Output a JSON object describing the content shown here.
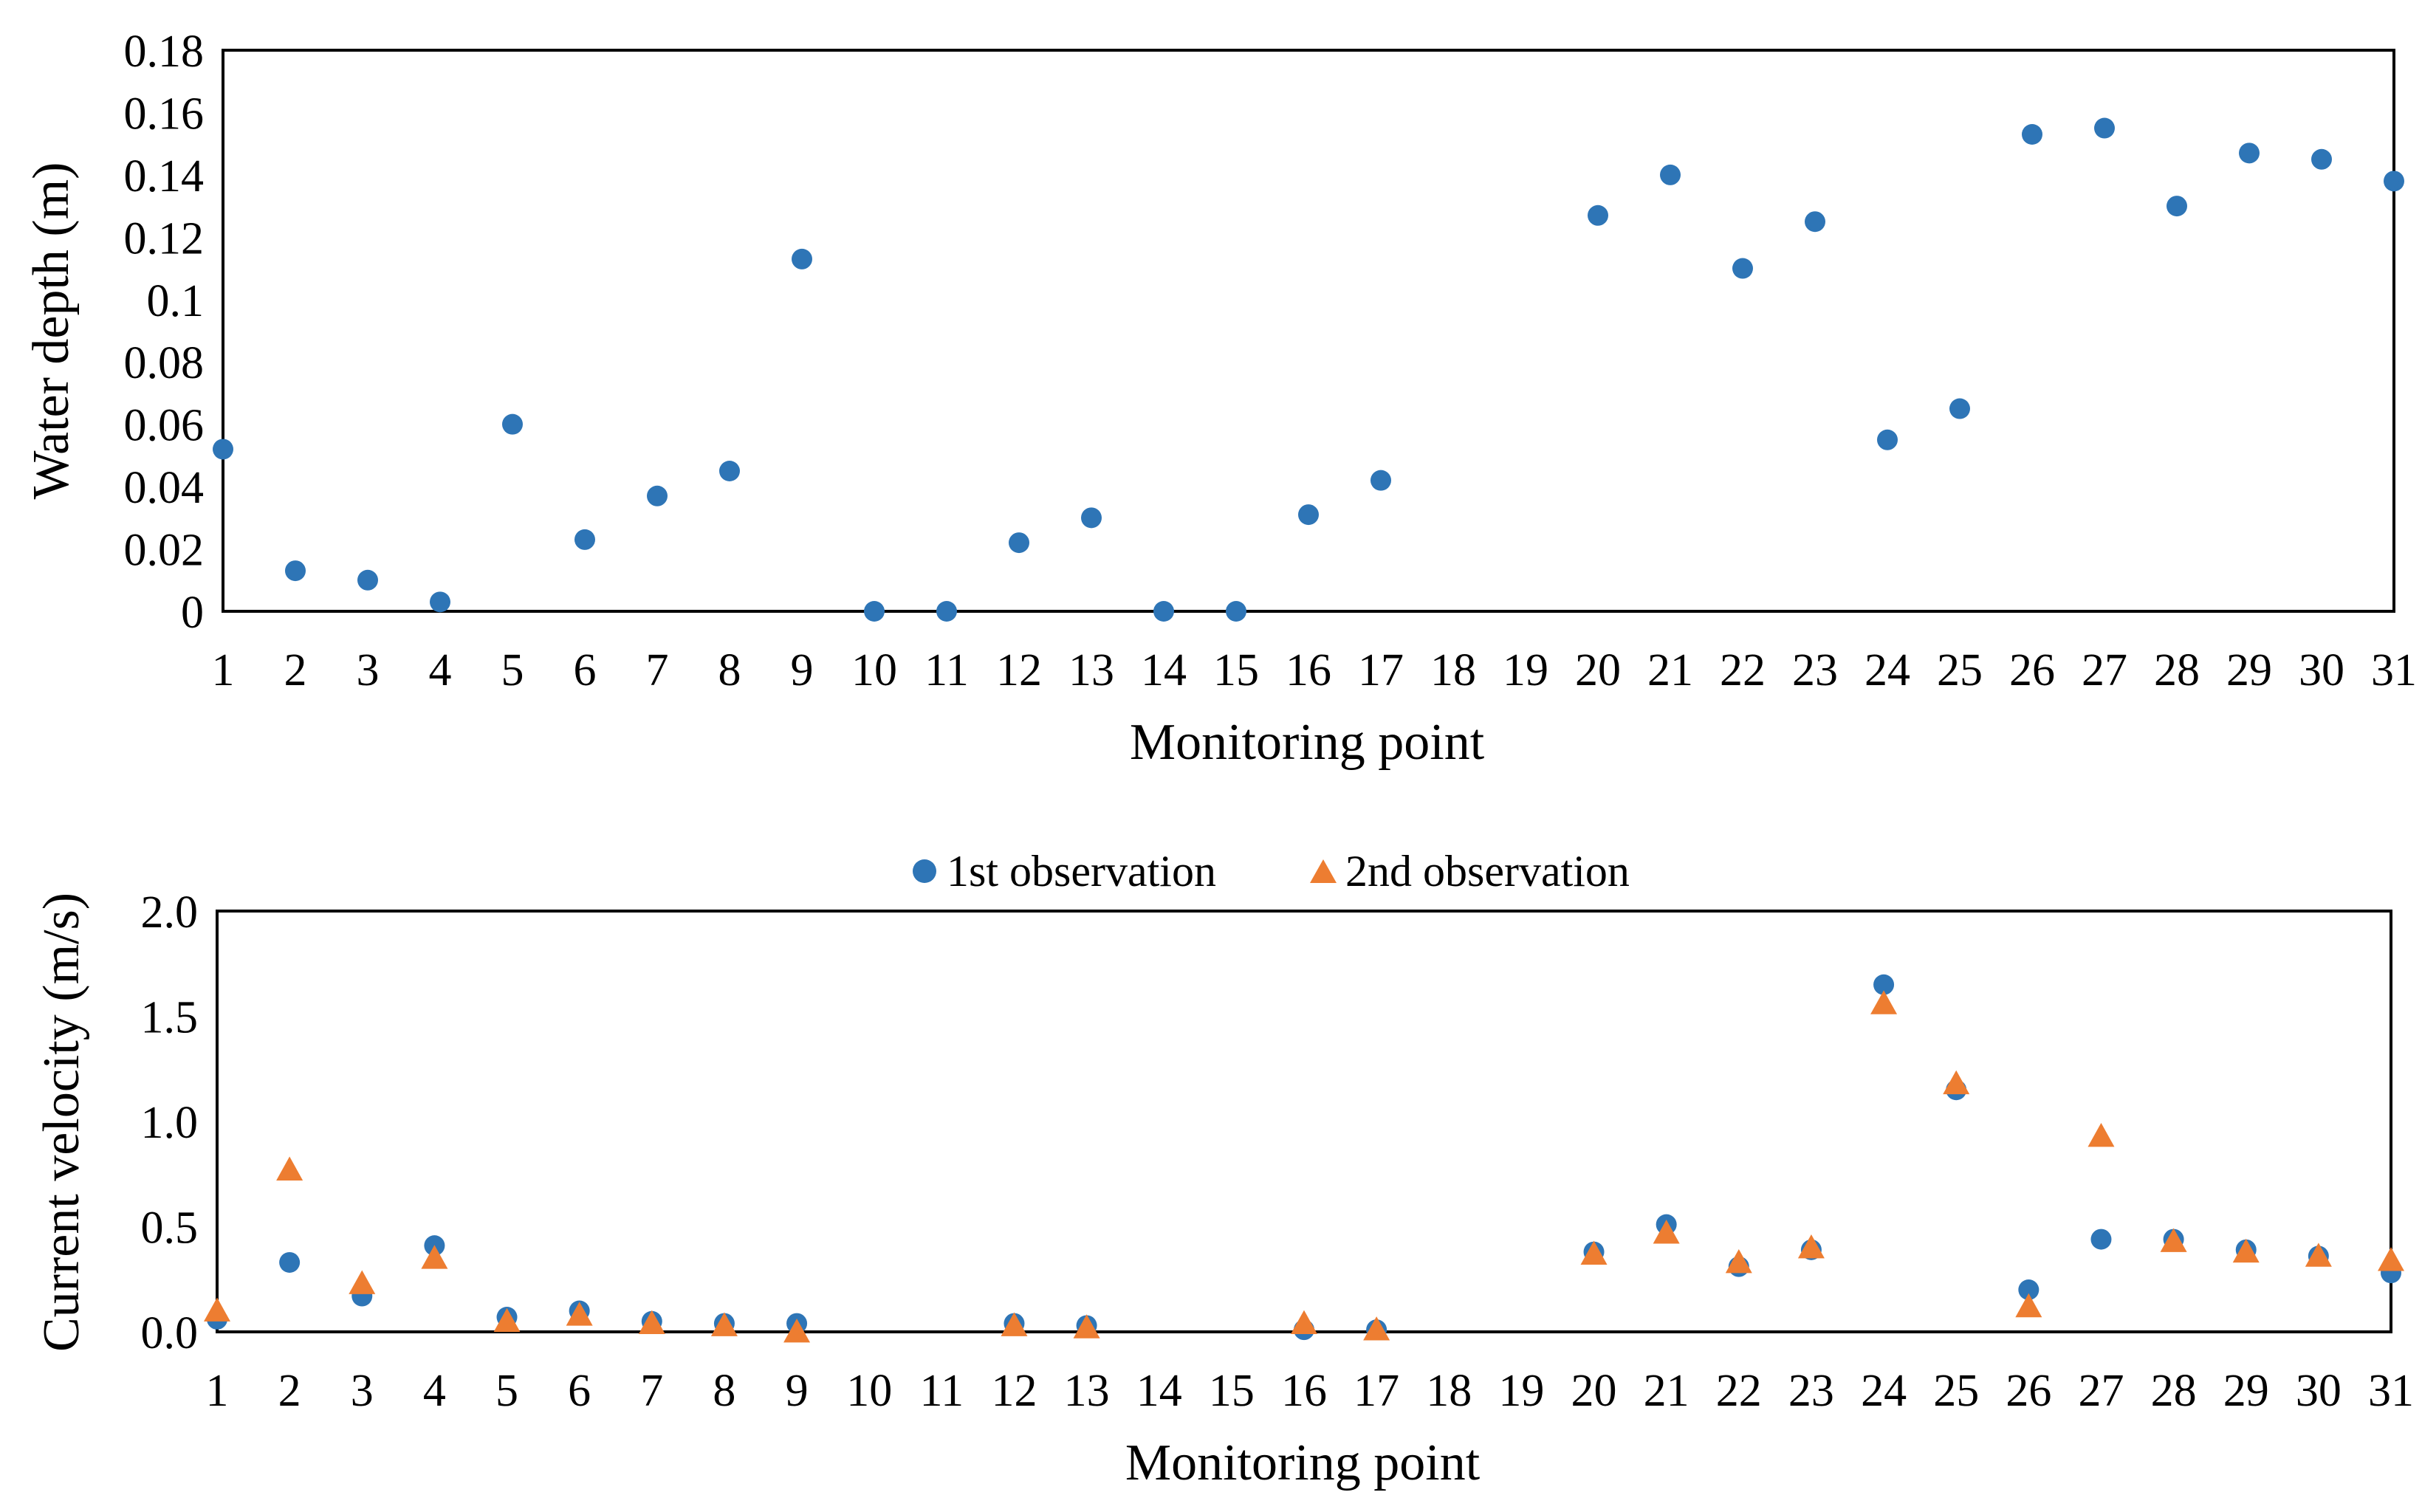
{
  "colors": {
    "series1": "#2E75B6",
    "series2": "#ED7D31",
    "axis": "#000000",
    "background": "#FFFFFF"
  },
  "chart_data": [
    {
      "type": "scatter",
      "title": "",
      "xlabel": "Monitoring point",
      "ylabel": "Water depth (m)",
      "xlim": [
        1,
        31
      ],
      "ylim": [
        0,
        0.18
      ],
      "grid": false,
      "x_ticks": [
        "1",
        "2",
        "3",
        "4",
        "5",
        "6",
        "7",
        "8",
        "9",
        "10",
        "11",
        "12",
        "13",
        "14",
        "15",
        "16",
        "17",
        "18",
        "19",
        "20",
        "21",
        "22",
        "23",
        "24",
        "25",
        "26",
        "27",
        "28",
        "29",
        "30",
        "31"
      ],
      "y_ticks": [
        "0",
        "0.02",
        "0.04",
        "0.06",
        "0.08",
        "0.1",
        "0.12",
        "0.14",
        "0.16",
        "0.18"
      ],
      "y_tick_values": [
        0,
        0.02,
        0.04,
        0.06,
        0.08,
        0.1,
        0.12,
        0.14,
        0.16,
        0.18
      ],
      "series": [
        {
          "name": "Water depth",
          "marker": "circle",
          "color": "#2E75B6",
          "points": [
            [
              1,
              0.052
            ],
            [
              2,
              0.013
            ],
            [
              3,
              0.01
            ],
            [
              4,
              0.003
            ],
            [
              5,
              0.06
            ],
            [
              6,
              0.023
            ],
            [
              7,
              0.037
            ],
            [
              8,
              0.045
            ],
            [
              9,
              0.113
            ],
            [
              10,
              0.0
            ],
            [
              11,
              0.0
            ],
            [
              12,
              0.022
            ],
            [
              13,
              0.03
            ],
            [
              14,
              0.0
            ],
            [
              15,
              0.0
            ],
            [
              16,
              0.031
            ],
            [
              17,
              0.042
            ],
            [
              20,
              0.127
            ],
            [
              21,
              0.14
            ],
            [
              22,
              0.11
            ],
            [
              23,
              0.125
            ],
            [
              24,
              0.055
            ],
            [
              25,
              0.065
            ],
            [
              26,
              0.153
            ],
            [
              27,
              0.155
            ],
            [
              28,
              0.13
            ],
            [
              29,
              0.147
            ],
            [
              30,
              0.145
            ],
            [
              31,
              0.138
            ]
          ]
        }
      ]
    },
    {
      "type": "scatter",
      "title": "",
      "xlabel": "Monitoring point",
      "ylabel": "Current velocity (m/s)",
      "xlim": [
        1,
        31
      ],
      "ylim": [
        0,
        2.0
      ],
      "grid": false,
      "legend": "top-center",
      "x_ticks": [
        "1",
        "2",
        "3",
        "4",
        "5",
        "6",
        "7",
        "8",
        "9",
        "10",
        "11",
        "12",
        "13",
        "14",
        "15",
        "16",
        "17",
        "18",
        "19",
        "20",
        "21",
        "22",
        "23",
        "24",
        "25",
        "26",
        "27",
        "28",
        "29",
        "30",
        "31"
      ],
      "y_ticks": [
        "0.0",
        "0.5",
        "1.0",
        "1.5",
        "2.0"
      ],
      "y_tick_values": [
        0,
        0.5,
        1.0,
        1.5,
        2.0
      ],
      "series": [
        {
          "name": "1st observation",
          "marker": "circle",
          "color": "#2E75B6",
          "points": [
            [
              1,
              0.06
            ],
            [
              2,
              0.33
            ],
            [
              3,
              0.17
            ],
            [
              4,
              0.41
            ],
            [
              5,
              0.07
            ],
            [
              6,
              0.1
            ],
            [
              7,
              0.05
            ],
            [
              8,
              0.04
            ],
            [
              9,
              0.04
            ],
            [
              12,
              0.04
            ],
            [
              13,
              0.03
            ],
            [
              16,
              0.01
            ],
            [
              17,
              0.01
            ],
            [
              20,
              0.38
            ],
            [
              21,
              0.51
            ],
            [
              22,
              0.31
            ],
            [
              23,
              0.39
            ],
            [
              24,
              1.65
            ],
            [
              25,
              1.15
            ],
            [
              26,
              0.2
            ],
            [
              27,
              0.44
            ],
            [
              28,
              0.44
            ],
            [
              29,
              0.39
            ],
            [
              30,
              0.36
            ],
            [
              31,
              0.28
            ]
          ]
        },
        {
          "name": "2nd observation",
          "marker": "triangle",
          "color": "#ED7D31",
          "points": [
            [
              1,
              0.1
            ],
            [
              2,
              0.77
            ],
            [
              3,
              0.23
            ],
            [
              4,
              0.35
            ],
            [
              5,
              0.05
            ],
            [
              6,
              0.08
            ],
            [
              7,
              0.04
            ],
            [
              8,
              0.03
            ],
            [
              9,
              0.0
            ],
            [
              12,
              0.03
            ],
            [
              13,
              0.02
            ],
            [
              16,
              0.04
            ],
            [
              17,
              0.01
            ],
            [
              20,
              0.37
            ],
            [
              21,
              0.47
            ],
            [
              22,
              0.33
            ],
            [
              23,
              0.4
            ],
            [
              24,
              1.56
            ],
            [
              25,
              1.18
            ],
            [
              26,
              0.12
            ],
            [
              27,
              0.93
            ],
            [
              28,
              0.43
            ],
            [
              29,
              0.38
            ],
            [
              30,
              0.36
            ],
            [
              31,
              0.34
            ]
          ]
        }
      ]
    }
  ]
}
